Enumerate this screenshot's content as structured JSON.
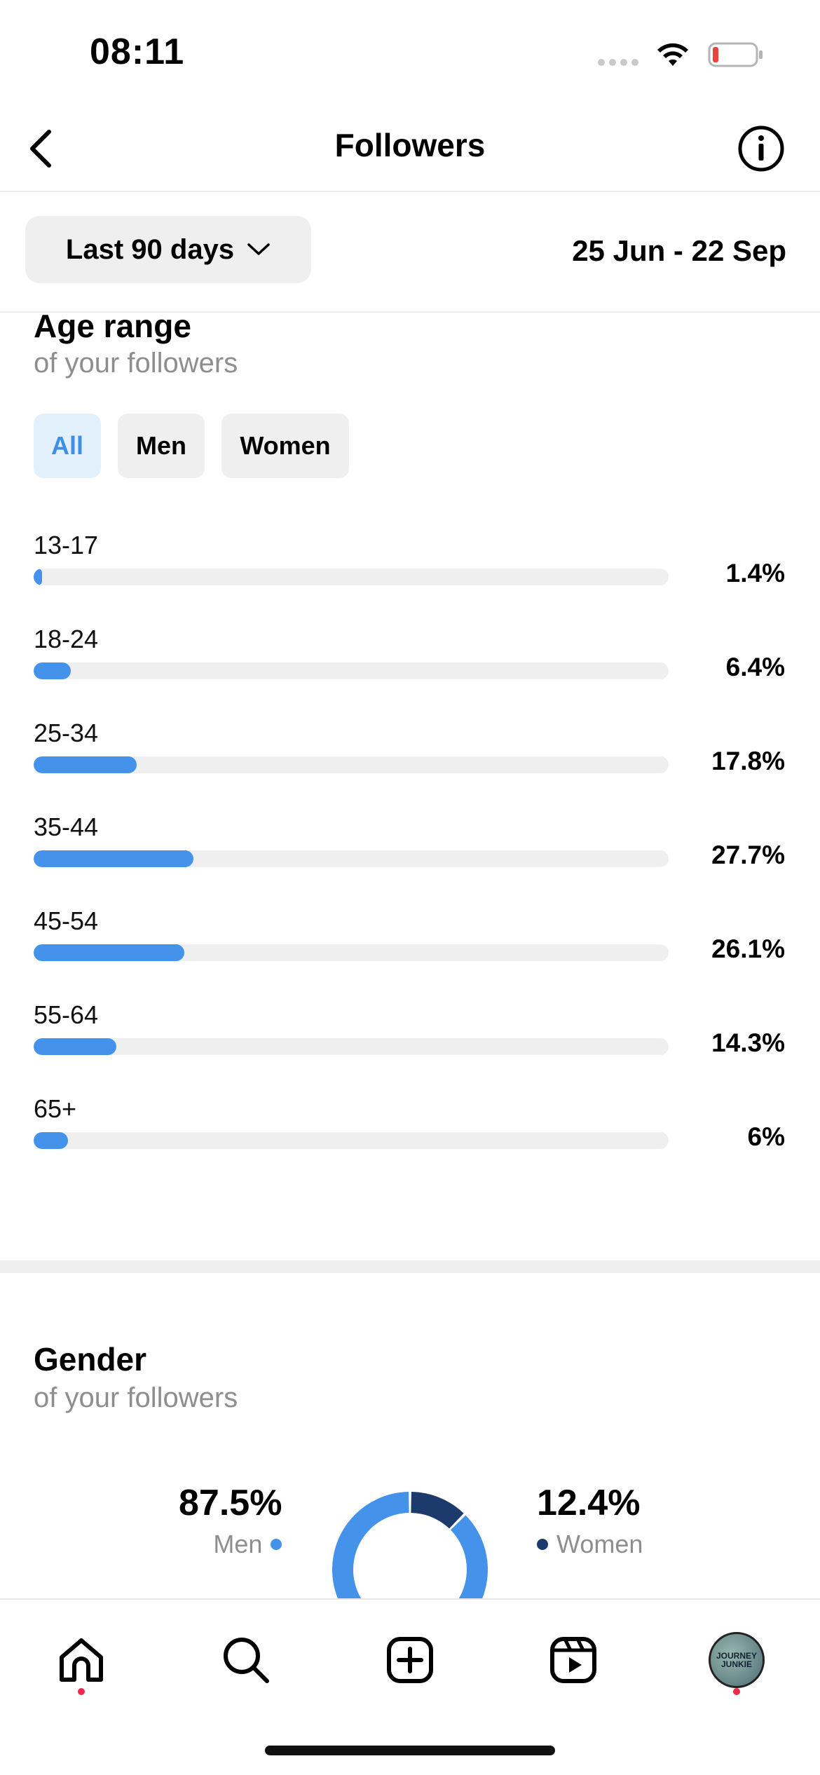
{
  "status_bar": {
    "time": "08:11",
    "icons": [
      "signal-icon",
      "wifi-icon",
      "battery-low-icon"
    ],
    "battery_color": "#e8453c"
  },
  "header": {
    "title": "Followers",
    "back_icon": "chevron-left-icon",
    "info_icon": "info-icon"
  },
  "filter": {
    "range_label": "Last 90 days",
    "range_icon": "chevron-down-icon",
    "date_range": "25 Jun - 22 Sep"
  },
  "age_range": {
    "title": "Age range",
    "subtitle": "of your followers",
    "tabs": [
      {
        "label": "All",
        "active": true
      },
      {
        "label": "Men",
        "active": false
      },
      {
        "label": "Women",
        "active": false
      }
    ],
    "rows": [
      {
        "label": "13-17",
        "pct_text": "1.4%",
        "value": 1.4
      },
      {
        "label": "18-24",
        "pct_text": "6.4%",
        "value": 6.4
      },
      {
        "label": "25-34",
        "pct_text": "17.8%",
        "value": 17.8
      },
      {
        "label": "35-44",
        "pct_text": "27.7%",
        "value": 27.7
      },
      {
        "label": "45-54",
        "pct_text": "26.1%",
        "value": 26.1
      },
      {
        "label": "55-64",
        "pct_text": "14.3%",
        "value": 14.3
      },
      {
        "label": "65+",
        "pct_text": "6%",
        "value": 6
      }
    ],
    "bar_color": "#4592ea"
  },
  "gender": {
    "title": "Gender",
    "subtitle": "of your followers",
    "men": {
      "pct_text": "87.5%",
      "label": "Men",
      "value": 87.5,
      "color": "#4592ea"
    },
    "women": {
      "pct_text": "12.4%",
      "label": "Women",
      "value": 12.4,
      "color": "#1c3a6b"
    }
  },
  "bottom_nav": {
    "items": [
      "home-icon",
      "search-icon",
      "create-icon",
      "reels-icon",
      "profile-avatar"
    ],
    "avatar_text": "JOURNEY JUNKIE",
    "notification_color": "#ed2a4a"
  }
}
